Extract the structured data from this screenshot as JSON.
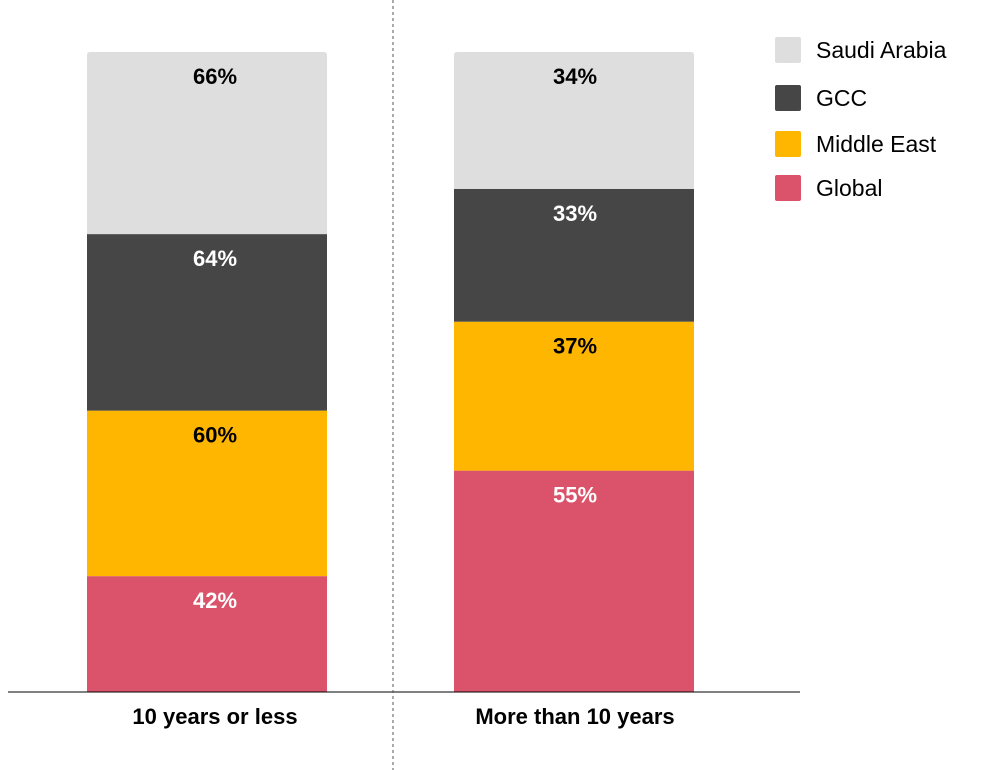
{
  "chart_data": {
    "type": "bar",
    "stacked": true,
    "categories": [
      "10 years or less",
      "More than 10 years"
    ],
    "series": [
      {
        "name": "Global",
        "color": "#DB536A",
        "label_color": "#ffffff",
        "values": [
          42,
          55
        ]
      },
      {
        "name": "Middle East",
        "color": "#FFB600",
        "label_color": "#000000",
        "values": [
          60,
          37
        ]
      },
      {
        "name": "GCC",
        "color": "#464646",
        "label_color": "#ffffff",
        "values": [
          64,
          33
        ]
      },
      {
        "name": "Saudi Arabia",
        "color": "#DEDEDE",
        "label_color": "#000000",
        "values": [
          66,
          34
        ]
      }
    ],
    "value_suffix": "%",
    "legend": {
      "placement": "top-right",
      "order": [
        "Saudi Arabia",
        "GCC",
        "Middle East",
        "Global"
      ]
    },
    "title": "",
    "xlabel": "",
    "ylabel": "",
    "grid": false
  }
}
